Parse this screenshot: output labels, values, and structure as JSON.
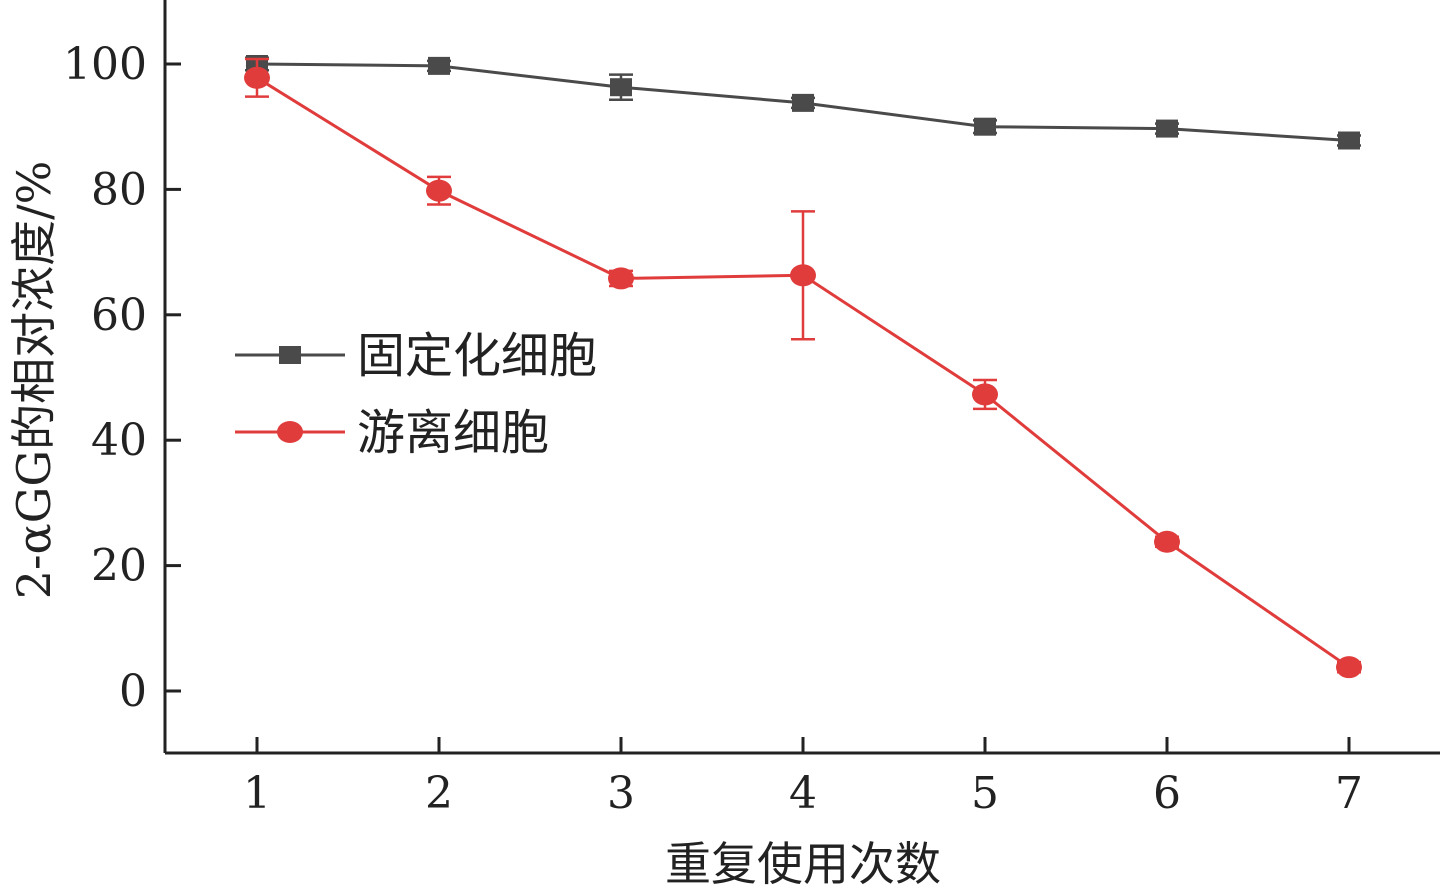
{
  "chart_data": {
    "type": "line",
    "xlabel": "重复使用次数",
    "ylabel": "2-αGG的相对浓度/%",
    "x": [
      1,
      2,
      3,
      4,
      5,
      6,
      7
    ],
    "xlim": [
      0.5,
      7.5
    ],
    "ylim": [
      -10,
      110
    ],
    "xticks": [
      "1",
      "2",
      "3",
      "4",
      "5",
      "6",
      "7"
    ],
    "yticks": [
      "0",
      "20",
      "40",
      "60",
      "80",
      "100"
    ],
    "grid": false,
    "legend_position": "center-left",
    "series": [
      {
        "name": "固定化细胞",
        "marker": "square",
        "color": "#4a4a4a",
        "values": [
          100,
          99.7,
          96.3,
          93.8,
          90.0,
          89.7,
          87.8
        ],
        "errors": [
          1.0,
          0.8,
          2.0,
          0.8,
          1.0,
          0.8,
          0.8
        ]
      },
      {
        "name": "游离细胞",
        "marker": "circle",
        "color": "#e03c3c",
        "values": [
          97.8,
          79.8,
          65.8,
          66.3,
          47.3,
          23.8,
          3.8
        ],
        "errors": [
          3.0,
          2.2,
          1.2,
          10.2,
          2.3,
          0.8,
          0.8
        ]
      }
    ]
  }
}
